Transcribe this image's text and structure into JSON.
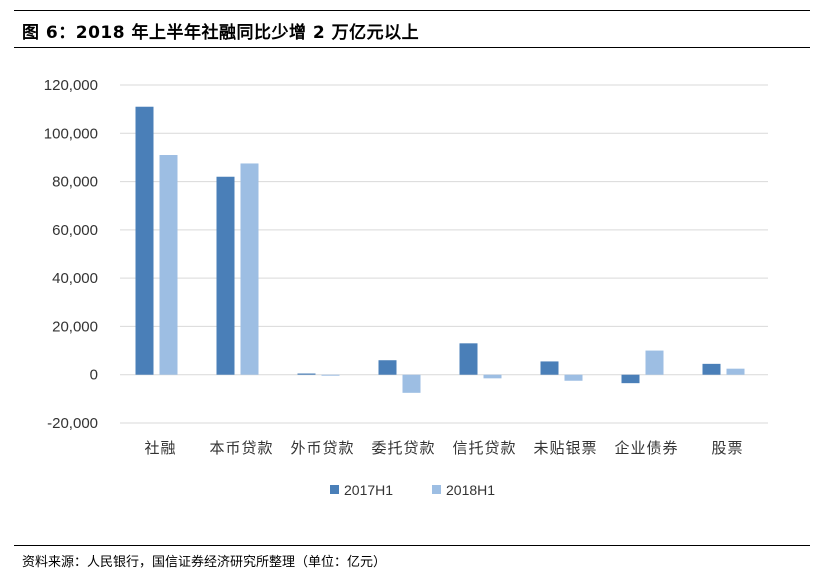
{
  "title": "图 6：2018 年上半年社融同比少增 2 万亿元以上",
  "source": "资料来源：人民银行，国信证券经济研究所整理（单位：亿元）",
  "colors": {
    "s2017": "#4a7fb8",
    "s2018": "#9dbee3",
    "grid": "#d9d9d9"
  },
  "chart_data": {
    "type": "bar",
    "categories": [
      "社融",
      "本币贷款",
      "外币贷款",
      "委托贷款",
      "信托贷款",
      "未贴银票",
      "企业债券",
      "股票"
    ],
    "series": [
      {
        "name": "2017H1",
        "values": [
          111000,
          82000,
          500,
          6000,
          13000,
          5500,
          -3500,
          4500
        ]
      },
      {
        "name": "2018H1",
        "values": [
          91000,
          87500,
          -400,
          -7500,
          -1500,
          -2500,
          10000,
          2500
        ]
      }
    ],
    "ylim": [
      -20000,
      120000
    ],
    "yticks": [
      "120,000",
      "100,000",
      "80,000",
      "60,000",
      "40,000",
      "20,000",
      "0",
      "-20,000"
    ],
    "ytick_values": [
      120000,
      100000,
      80000,
      60000,
      40000,
      20000,
      0,
      -20000
    ],
    "grid": true,
    "legend": "bottom"
  }
}
